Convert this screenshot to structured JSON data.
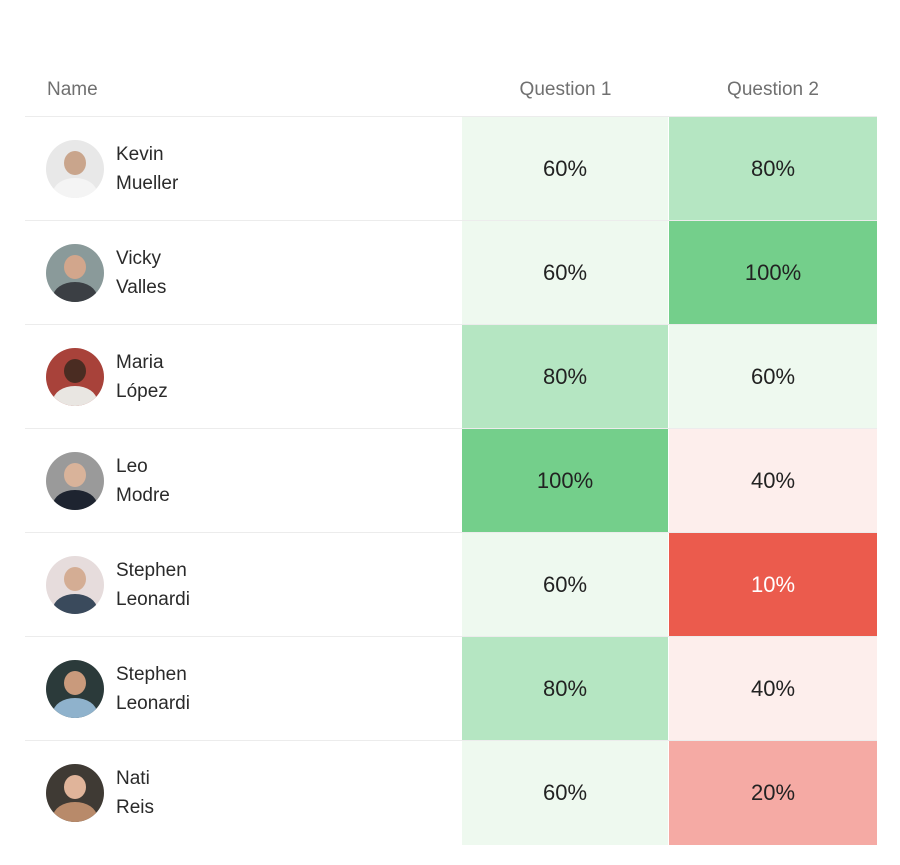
{
  "header": {
    "name": "Name",
    "question1": "Question 1",
    "question2": "Question 2"
  },
  "rows": [
    {
      "first": "Kevin",
      "last": "Mueller",
      "q1": "60%",
      "q2": "80%"
    },
    {
      "first": "Vicky",
      "last": "Valles",
      "q1": "60%",
      "q2": "100%"
    },
    {
      "first": "Maria",
      "last": "López",
      "q1": "80%",
      "q2": "60%"
    },
    {
      "first": "Leo",
      "last": "Modre",
      "q1": "100%",
      "q2": "40%"
    },
    {
      "first": "Stephen",
      "last": "Leonardi",
      "q1": "60%",
      "q2": "10%"
    },
    {
      "first": "Stephen",
      "last": "Leonardi",
      "q1": "80%",
      "q2": "40%"
    },
    {
      "first": "Nati",
      "last": "Reis",
      "q1": "60%",
      "q2": "20%"
    }
  ],
  "colors": {
    "score_10": "#eb5b4d",
    "score_20": "#f5aaa4",
    "score_40": "#fdeeec",
    "score_60": "#eef9ef",
    "score_80": "#b5e6c2",
    "score_100": "#74cf8b"
  }
}
